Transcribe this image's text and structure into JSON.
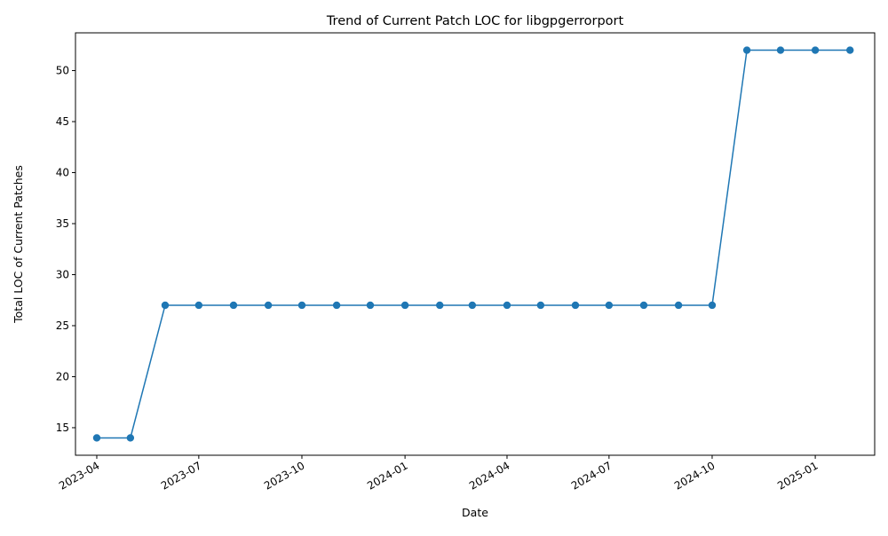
{
  "chart_data": {
    "type": "line",
    "title": "Trend of Current Patch LOC for libgpgerrorport",
    "xlabel": "Date",
    "ylabel": "Total LOC of Current Patches",
    "x_ticks": [
      "2023-04",
      "2023-07",
      "2023-10",
      "2024-01",
      "2024-04",
      "2024-07",
      "2024-10",
      "2025-01"
    ],
    "y_ticks": [
      15,
      20,
      25,
      30,
      35,
      40,
      45,
      50
    ],
    "ylim": [
      12.3,
      53.7
    ],
    "xlim": [
      "2023-03-13",
      "2025-02-23"
    ],
    "grid": false,
    "legend": "none",
    "color": "#1f77b4",
    "series": [
      {
        "x": [
          "2023-04-01",
          "2023-05-01",
          "2023-06-01",
          "2023-07-01",
          "2023-08-01",
          "2023-09-01",
          "2023-10-01",
          "2023-11-01",
          "2023-12-01",
          "2024-01-01",
          "2024-02-01",
          "2024-03-01",
          "2024-04-01",
          "2024-05-01",
          "2024-06-01",
          "2024-07-01",
          "2024-08-01",
          "2024-09-01",
          "2024-10-01",
          "2024-11-01",
          "2024-12-01",
          "2025-01-01",
          "2025-02-01"
        ],
        "values": [
          14,
          14,
          27,
          27,
          27,
          27,
          27,
          27,
          27,
          27,
          27,
          27,
          27,
          27,
          27,
          27,
          27,
          27,
          27,
          52,
          52,
          52,
          52
        ]
      }
    ]
  }
}
